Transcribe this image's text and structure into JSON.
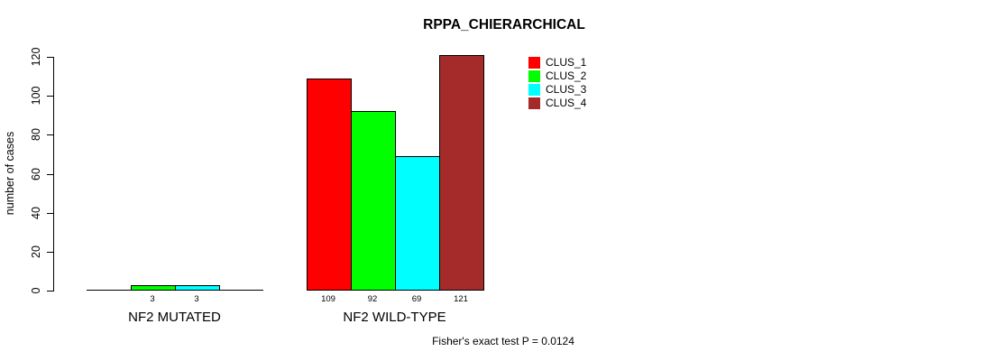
{
  "title": "RPPA_CHIERARCHICAL",
  "chart_data": {
    "type": "bar",
    "title": "RPPA_CHIERARCHICAL",
    "xlabel": "",
    "ylabel": "number of cases",
    "categories": [
      "NF2 MUTATED",
      "NF2 WILD-TYPE"
    ],
    "series": [
      {
        "name": "CLUS_1",
        "color": "#ff0000",
        "values": [
          0,
          109
        ]
      },
      {
        "name": "CLUS_2",
        "color": "#00ff00",
        "values": [
          3,
          92
        ]
      },
      {
        "name": "CLUS_3",
        "color": "#00ffff",
        "values": [
          3,
          69
        ]
      },
      {
        "name": "CLUS_4",
        "color": "#a52a2a",
        "values": [
          0,
          121
        ]
      }
    ],
    "bar_value_labels_shown": true,
    "yticks": [
      0,
      20,
      40,
      60,
      80,
      100,
      120
    ],
    "ylim": [
      0,
      120
    ],
    "grid": false,
    "legend": {
      "position": "top-inside",
      "entries": [
        "CLUS_1",
        "CLUS_2",
        "CLUS_3",
        "CLUS_4"
      ]
    },
    "annotation": "Fisher's exact test P = 0.0124"
  },
  "colors": {
    "axis": "#000000",
    "text": "#000000",
    "background": "#ffffff"
  }
}
